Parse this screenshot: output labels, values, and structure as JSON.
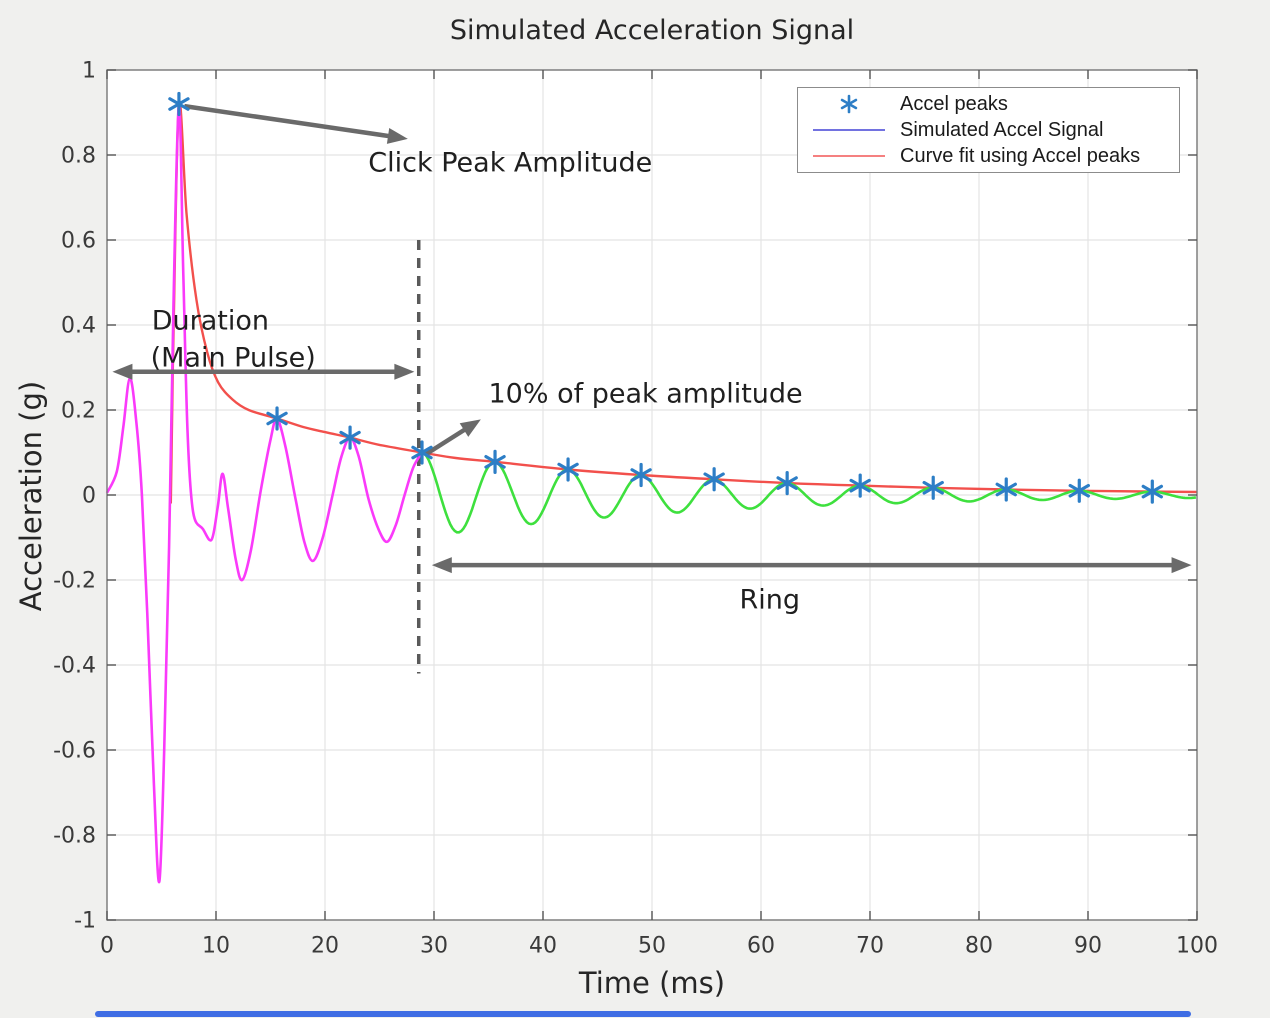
{
  "figure": {
    "background": "#f0f0ee"
  },
  "scrollbar": {
    "color": "#3f6de4"
  },
  "chart_data": {
    "type": "line",
    "title": "Simulated Acceleration Signal",
    "xlabel": "Time (ms)",
    "ylabel": "Acceleration (g)",
    "xlim": [
      0,
      100
    ],
    "ylim": [
      -1,
      1
    ],
    "x_ticks": [
      0,
      10,
      20,
      30,
      40,
      50,
      60,
      70,
      80,
      90,
      100
    ],
    "y_ticks": [
      -1,
      -0.8,
      -0.6,
      -0.4,
      -0.2,
      0,
      0.2,
      0.4,
      0.6,
      0.8,
      1
    ],
    "grid": true,
    "legend_position": "top-right",
    "legend": [
      {
        "label": "Accel peaks",
        "marker": "asterisk",
        "color": "#2d7ec6"
      },
      {
        "label": "Simulated Accel Signal",
        "marker": "line",
        "color": "#7272e0"
      },
      {
        "label": "Curve fit using Accel peaks",
        "marker": "line",
        "color": "#f58080"
      }
    ],
    "series": [
      {
        "name": "Simulated Accel Signal (main pulse)",
        "type": "line",
        "color": "#fa3afa",
        "points": [
          [
            0,
            0.005
          ],
          [
            0.9,
            0.055
          ],
          [
            1.5,
            0.16
          ],
          [
            2.1,
            0.275
          ],
          [
            2.7,
            0.17
          ],
          [
            3.2,
            0.0
          ],
          [
            3.7,
            -0.28
          ],
          [
            4.3,
            -0.68
          ],
          [
            4.8,
            -0.91
          ],
          [
            5.25,
            -0.6
          ],
          [
            5.7,
            -0.12
          ],
          [
            6.1,
            0.45
          ],
          [
            6.6,
            0.92
          ],
          [
            7.0,
            0.52
          ],
          [
            7.4,
            0.14
          ],
          [
            7.9,
            -0.04
          ],
          [
            8.8,
            -0.08
          ],
          [
            9.6,
            -0.105
          ],
          [
            10.15,
            -0.03
          ],
          [
            10.6,
            0.05
          ],
          [
            11.1,
            -0.03
          ],
          [
            11.8,
            -0.15
          ],
          [
            12.4,
            -0.2
          ],
          [
            13.2,
            -0.13
          ],
          [
            14.1,
            0.01
          ],
          [
            15.0,
            0.13
          ],
          [
            15.6,
            0.18
          ],
          [
            16.4,
            0.11
          ],
          [
            17.3,
            -0.01
          ],
          [
            18.1,
            -0.11
          ],
          [
            18.9,
            -0.155
          ],
          [
            19.8,
            -0.1
          ],
          [
            20.7,
            0.0
          ],
          [
            21.5,
            0.09
          ],
          [
            22.3,
            0.135
          ],
          [
            23.1,
            0.09
          ],
          [
            24.0,
            -0.01
          ],
          [
            24.9,
            -0.08
          ],
          [
            25.7,
            -0.11
          ],
          [
            26.5,
            -0.07
          ],
          [
            27.3,
            0.0
          ],
          [
            28.1,
            0.065
          ],
          [
            28.9,
            0.1
          ]
        ]
      },
      {
        "name": "Simulated Accel Signal (ring)",
        "type": "damped-cosine",
        "color": "#3ee03e",
        "params": {
          "t0": 28.9,
          "amplitude": 0.1,
          "decay": 0.0377,
          "period": 6.7,
          "t_end": 100
        }
      },
      {
        "name": "Curve fit using Accel peaks",
        "type": "line",
        "color": "#f2504c",
        "points": [
          [
            5.85,
            -0.02
          ],
          [
            6.1,
            0.38
          ],
          [
            6.6,
            0.92
          ],
          [
            7.3,
            0.66
          ],
          [
            8.2,
            0.46
          ],
          [
            9.2,
            0.335
          ],
          [
            10.2,
            0.265
          ],
          [
            11.5,
            0.225
          ],
          [
            13.0,
            0.2
          ],
          [
            15.6,
            0.18
          ],
          [
            18.0,
            0.16
          ],
          [
            20.0,
            0.148
          ],
          [
            22.3,
            0.135
          ],
          [
            25.0,
            0.118
          ],
          [
            28.9,
            0.1
          ],
          [
            32.0,
            0.087
          ],
          [
            35.6,
            0.078
          ],
          [
            42.3,
            0.06
          ],
          [
            49.0,
            0.047
          ],
          [
            55.7,
            0.037
          ],
          [
            62.4,
            0.028
          ],
          [
            69.1,
            0.022
          ],
          [
            75.8,
            0.017
          ],
          [
            82.5,
            0.013
          ],
          [
            89.2,
            0.01
          ],
          [
            95.9,
            0.008
          ],
          [
            100,
            0.007
          ]
        ]
      },
      {
        "name": "Accel peaks",
        "type": "scatter",
        "marker": "asterisk",
        "color": "#2d7ec6",
        "points": [
          [
            6.6,
            0.92
          ],
          [
            15.6,
            0.18
          ],
          [
            22.3,
            0.135
          ],
          [
            28.9,
            0.1
          ],
          [
            35.6,
            0.078
          ],
          [
            42.3,
            0.06
          ],
          [
            49.0,
            0.047
          ],
          [
            55.7,
            0.037
          ],
          [
            62.4,
            0.028
          ],
          [
            69.1,
            0.022
          ],
          [
            75.8,
            0.017
          ],
          [
            82.5,
            0.013
          ],
          [
            89.2,
            0.01
          ],
          [
            95.9,
            0.008
          ]
        ]
      }
    ],
    "threshold_line": {
      "t": 28.6,
      "from": 0.6,
      "to": -0.42,
      "style": "dashed",
      "color": "#5a5a5a"
    },
    "arrow_color": "#6a6a6a",
    "annotations": [
      {
        "id": "click-peak-amplitude",
        "text": "Click Peak Amplitude",
        "text_pos": [
          37.0,
          0.784
        ],
        "align": "middle",
        "arrow": {
          "from": [
            7.1,
            0.915
          ],
          "to": [
            27.6,
            0.838
          ],
          "heads": "end"
        }
      },
      {
        "id": "duration-main-pulse",
        "text": "Duration",
        "text2": "(Main Pulse)",
        "text_pos": [
          4.1,
          0.412
        ],
        "text2_pos": [
          4.0,
          0.325
        ],
        "align": "start",
        "arrow": {
          "from": [
            0.5,
            0.29
          ],
          "to": [
            28.2,
            0.29
          ],
          "heads": "both"
        }
      },
      {
        "id": "ten-percent-of-peak",
        "text": "10% of peak amplitude",
        "text_pos": [
          35.0,
          0.24
        ],
        "align": "start",
        "arrow": {
          "from": [
            29.2,
            0.095
          ],
          "to": [
            34.3,
            0.178
          ],
          "heads": "end"
        }
      },
      {
        "id": "ring",
        "text": "Ring",
        "text_pos": [
          60.8,
          -0.245
        ],
        "align": "middle",
        "arrow": {
          "from": [
            29.8,
            -0.165
          ],
          "to": [
            99.5,
            -0.165
          ],
          "heads": "both"
        }
      }
    ]
  }
}
